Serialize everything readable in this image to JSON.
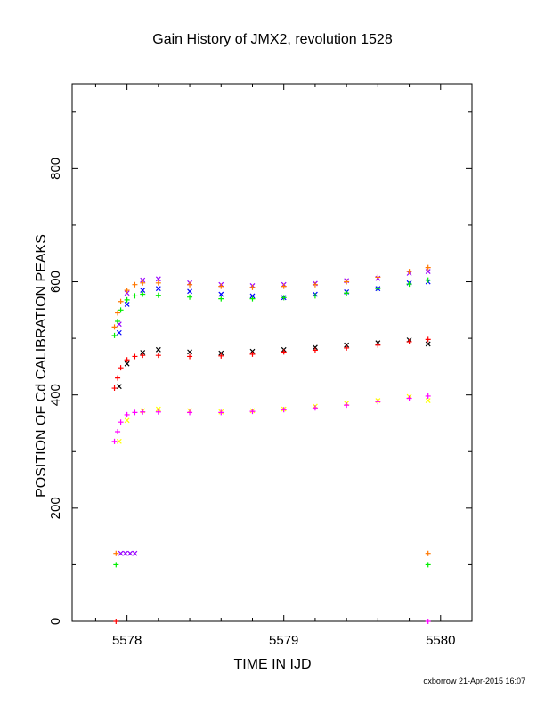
{
  "chart_data": {
    "type": "scatter",
    "title": "Gain History of JMX2, revolution 1528",
    "xlabel": "TIME IN IJD",
    "ylabel": "POSITION OF Cd CALIBRATION PEAKS",
    "footer": "oxborrow 21-Apr-2015 16:07",
    "xlim": [
      5577.65,
      5580.2
    ],
    "ylim": [
      0,
      950
    ],
    "xticks": [
      5578,
      5579,
      5580
    ],
    "yticks": [
      0,
      200,
      400,
      600,
      800
    ],
    "grid": false,
    "legend": "none",
    "series": [
      {
        "marker": "x",
        "color": "#0000ff",
        "x": [
          5577.95,
          5578.0,
          5578.1,
          5578.2,
          5578.4,
          5578.6,
          5578.8,
          5579.0,
          5579.2,
          5579.4,
          5579.6,
          5579.8,
          5579.92
        ],
        "y": [
          510,
          560,
          585,
          588,
          583,
          578,
          575,
          572,
          578,
          582,
          588,
          598,
          600
        ]
      },
      {
        "marker": "x",
        "color": "#9900ff",
        "x": [
          5577.95,
          5578.0,
          5578.1,
          5578.2,
          5578.4,
          5578.6,
          5578.8,
          5579.0,
          5579.2,
          5579.4,
          5579.6,
          5579.8,
          5579.92
        ],
        "y": [
          525,
          580,
          603,
          605,
          598,
          595,
          593,
          595,
          597,
          602,
          606,
          615,
          618
        ]
      },
      {
        "marker": "x",
        "color": "#000000",
        "x": [
          5577.95,
          5578.0,
          5578.1,
          5578.2,
          5578.4,
          5578.6,
          5578.8,
          5579.0,
          5579.2,
          5579.4,
          5579.6,
          5579.8,
          5579.92
        ],
        "y": [
          415,
          455,
          475,
          480,
          476,
          474,
          477,
          480,
          484,
          488,
          492,
          497,
          490
        ]
      },
      {
        "marker": "x",
        "color": "#ffff00",
        "x": [
          5577.95,
          5578.0,
          5578.1,
          5578.2,
          5578.4,
          5578.6,
          5578.8,
          5579.0,
          5579.2,
          5579.4,
          5579.6,
          5579.8,
          5579.92
        ],
        "y": [
          318,
          355,
          372,
          375,
          372,
          370,
          372,
          375,
          380,
          385,
          390,
          397,
          390
        ]
      },
      {
        "marker": "+",
        "color": "#ff7700",
        "x": [
          5577.92,
          5577.94,
          5577.96,
          5578.0,
          5578.05,
          5578.1,
          5578.2,
          5578.4,
          5578.6,
          5578.8,
          5579.0,
          5579.2,
          5579.4,
          5579.6,
          5579.8,
          5579.92
        ],
        "y": [
          520,
          545,
          565,
          585,
          595,
          598,
          598,
          595,
          592,
          590,
          592,
          595,
          600,
          608,
          618,
          625
        ]
      },
      {
        "marker": "+",
        "color": "#00ee00",
        "x": [
          5577.92,
          5577.94,
          5577.96,
          5578.0,
          5578.05,
          5578.1,
          5578.2,
          5578.4,
          5578.6,
          5578.8,
          5579.0,
          5579.2,
          5579.4,
          5579.6,
          5579.8,
          5579.92
        ],
        "y": [
          505,
          530,
          550,
          568,
          575,
          578,
          576,
          573,
          570,
          570,
          572,
          575,
          580,
          588,
          596,
          603
        ]
      },
      {
        "marker": "+",
        "color": "#ff0000",
        "x": [
          5577.92,
          5577.94,
          5577.96,
          5578.0,
          5578.05,
          5578.1,
          5578.2,
          5578.4,
          5578.6,
          5578.8,
          5579.0,
          5579.2,
          5579.4,
          5579.6,
          5579.8,
          5579.92
        ],
        "y": [
          412,
          430,
          448,
          462,
          468,
          470,
          470,
          468,
          469,
          472,
          476,
          479,
          483,
          488,
          494,
          498
        ]
      },
      {
        "marker": "+",
        "color": "#ff00ff",
        "x": [
          5577.92,
          5577.94,
          5577.96,
          5578.0,
          5578.05,
          5578.1,
          5578.2,
          5578.4,
          5578.6,
          5578.8,
          5579.0,
          5579.2,
          5579.4,
          5579.6,
          5579.8,
          5579.92
        ],
        "y": [
          318,
          335,
          352,
          365,
          369,
          370,
          370,
          369,
          369,
          371,
          374,
          377,
          382,
          388,
          394,
          398
        ]
      },
      {
        "marker": "+",
        "color": "#ff7700",
        "x": [
          5577.93,
          5579.92
        ],
        "y": [
          120,
          120
        ]
      },
      {
        "marker": "x",
        "color": "#9900ff",
        "x": [
          5577.96,
          5577.99,
          5578.02,
          5578.05
        ],
        "y": [
          120,
          120,
          120,
          120
        ]
      },
      {
        "marker": "+",
        "color": "#00ee00",
        "x": [
          5577.93,
          5579.92
        ],
        "y": [
          100,
          100
        ]
      },
      {
        "marker": "+",
        "color": "#ff0000",
        "x": [
          5577.93
        ],
        "y": [
          0
        ]
      },
      {
        "marker": "+",
        "color": "#ff00ff",
        "x": [
          5579.92
        ],
        "y": [
          0
        ]
      }
    ]
  }
}
